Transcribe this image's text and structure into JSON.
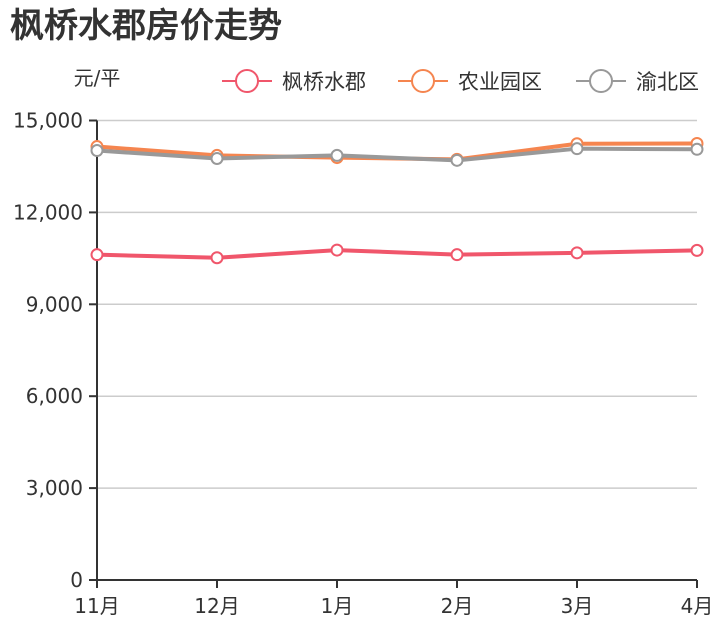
{
  "title": "枫桥水郡房价走势",
  "chart_data": {
    "type": "line",
    "title": "枫桥水郡房价走势",
    "xlabel": "",
    "ylabel": "元/平",
    "ylim": [
      0,
      15000
    ],
    "yticks": [
      0,
      3000,
      6000,
      9000,
      12000,
      15000
    ],
    "ytick_labels": [
      "0",
      "3,000",
      "6,000",
      "9,000",
      "12,000",
      "15,000"
    ],
    "categories": [
      "11月",
      "12月",
      "1月",
      "2月",
      "3月",
      "4月"
    ],
    "grid": true,
    "legend_position": "top-right",
    "series": [
      {
        "name": "枫桥水郡",
        "color": "#f0566b",
        "values": [
          10620,
          10520,
          10770,
          10620,
          10680,
          10760
        ]
      },
      {
        "name": "农业园区",
        "color": "#f5854f",
        "values": [
          14150,
          13860,
          13790,
          13730,
          14240,
          14250
        ]
      },
      {
        "name": "渝北区",
        "color": "#999999",
        "values": [
          14020,
          13760,
          13860,
          13700,
          14080,
          14060
        ]
      }
    ]
  }
}
